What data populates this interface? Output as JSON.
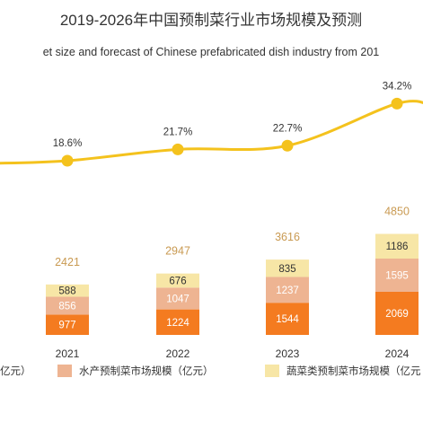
{
  "chart_data": {
    "type": "bar",
    "title": "2019-2026年中国预制菜行业市场规模及预测",
    "subtitle": "et size and forecast of Chinese prefabricated dish industry from 201",
    "categories": [
      "2021",
      "2022",
      "2023",
      "2024"
    ],
    "stacked": true,
    "series": [
      {
        "name": "",
        "values": [
          977,
          1224,
          1544,
          2069
        ],
        "color": "#f47b20"
      },
      {
        "name": "水产预制菜市场规模（亿元）",
        "values": [
          856,
          1047,
          1237,
          1595
        ],
        "color": "#eeb492"
      },
      {
        "name": "蔬菜类预制菜市场规模（亿元",
        "values": [
          588,
          676,
          835,
          1186
        ],
        "color": "#f7e6a6"
      }
    ],
    "totals": [
      2421,
      2947,
      3616,
      4850
    ],
    "growth_rate": {
      "values": [
        "18.6%",
        "21.7%",
        "22.7%",
        "34.2%"
      ],
      "numeric": [
        18.6,
        21.7,
        22.7,
        34.2
      ],
      "color": "#f4c21d"
    },
    "legend_fragments": [
      "亿元）"
    ],
    "legend_position": "bottom",
    "grid": false
  }
}
